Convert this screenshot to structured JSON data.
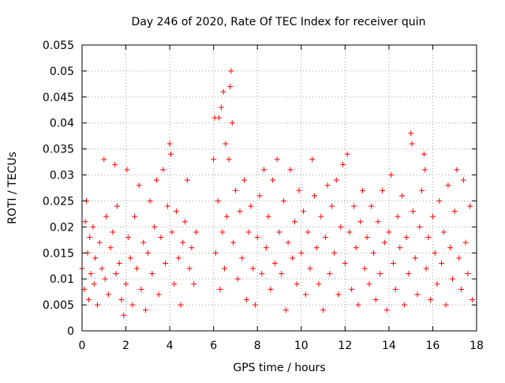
{
  "chart_data": {
    "type": "scatter",
    "title": "Day 246 of 2020, Rate Of TEC Index for receiver quin",
    "xlabel": "GPS time / hours",
    "ylabel": "ROTI / TECUs",
    "xlim": [
      0,
      18
    ],
    "ylim": [
      0,
      0.055
    ],
    "xticks": [
      0,
      2,
      4,
      6,
      8,
      10,
      12,
      14,
      16,
      18
    ],
    "xtick_labels": [
      "0",
      "2",
      "4",
      "6",
      "8",
      "10",
      "12",
      "14",
      "16",
      "18"
    ],
    "yticks": [
      0,
      0.005,
      0.01,
      0.015,
      0.02,
      0.025,
      0.03,
      0.035,
      0.04,
      0.045,
      0.05,
      0.055
    ],
    "ytick_labels": [
      "0",
      "0.005",
      "0.01",
      "0.015",
      "0.02",
      "0.025",
      "0.03",
      "0.035",
      "0.04",
      "0.045",
      "0.05",
      "0.055"
    ],
    "grid": true,
    "marker": "+",
    "color": "#ff0000",
    "series": [
      {
        "name": "ROTI",
        "points": [
          [
            0.0,
            0.012
          ],
          [
            0.1,
            0.008
          ],
          [
            0.15,
            0.021
          ],
          [
            0.2,
            0.025
          ],
          [
            0.25,
            0.015
          ],
          [
            0.3,
            0.006
          ],
          [
            0.35,
            0.018
          ],
          [
            0.4,
            0.011
          ],
          [
            0.5,
            0.02
          ],
          [
            0.55,
            0.009
          ],
          [
            0.6,
            0.014
          ],
          [
            0.7,
            0.005
          ],
          [
            0.8,
            0.017
          ],
          [
            0.9,
            0.012
          ],
          [
            1.0,
            0.033
          ],
          [
            1.05,
            0.01
          ],
          [
            1.1,
            0.022
          ],
          [
            1.2,
            0.007
          ],
          [
            1.3,
            0.016
          ],
          [
            1.4,
            0.019
          ],
          [
            1.5,
            0.032
          ],
          [
            1.55,
            0.011
          ],
          [
            1.6,
            0.024
          ],
          [
            1.7,
            0.013
          ],
          [
            1.8,
            0.006
          ],
          [
            1.9,
            0.003
          ],
          [
            2.0,
            0.009
          ],
          [
            2.05,
            0.031
          ],
          [
            2.1,
            0.018
          ],
          [
            2.2,
            0.014
          ],
          [
            2.3,
            0.005
          ],
          [
            2.4,
            0.022
          ],
          [
            2.5,
            0.012
          ],
          [
            2.6,
            0.028
          ],
          [
            2.7,
            0.008
          ],
          [
            2.8,
            0.017
          ],
          [
            2.9,
            0.004
          ],
          [
            3.0,
            0.015
          ],
          [
            3.1,
            0.025
          ],
          [
            3.2,
            0.011
          ],
          [
            3.3,
            0.02
          ],
          [
            3.4,
            0.029
          ],
          [
            3.5,
            0.007
          ],
          [
            3.6,
            0.018
          ],
          [
            3.7,
            0.031
          ],
          [
            3.8,
            0.013
          ],
          [
            3.9,
            0.024
          ],
          [
            4.0,
            0.036
          ],
          [
            4.05,
            0.034
          ],
          [
            4.1,
            0.019
          ],
          [
            4.2,
            0.009
          ],
          [
            4.3,
            0.023
          ],
          [
            4.4,
            0.014
          ],
          [
            4.5,
            0.005
          ],
          [
            4.6,
            0.017
          ],
          [
            4.7,
            0.021
          ],
          [
            4.8,
            0.029
          ],
          [
            4.9,
            0.012
          ],
          [
            5.0,
            0.016
          ],
          [
            5.1,
            0.009
          ],
          [
            5.2,
            0.019
          ],
          [
            6.0,
            0.033
          ],
          [
            6.05,
            0.041
          ],
          [
            6.1,
            0.015
          ],
          [
            6.2,
            0.025
          ],
          [
            6.25,
            0.041
          ],
          [
            6.3,
            0.008
          ],
          [
            6.35,
            0.043
          ],
          [
            6.4,
            0.019
          ],
          [
            6.45,
            0.046
          ],
          [
            6.5,
            0.012
          ],
          [
            6.55,
            0.036
          ],
          [
            6.6,
            0.022
          ],
          [
            6.7,
            0.033
          ],
          [
            6.75,
            0.047
          ],
          [
            6.8,
            0.05
          ],
          [
            6.85,
            0.04
          ],
          [
            6.9,
            0.017
          ],
          [
            7.0,
            0.027
          ],
          [
            7.1,
            0.01
          ],
          [
            7.2,
            0.023
          ],
          [
            7.3,
            0.014
          ],
          [
            7.4,
            0.029
          ],
          [
            7.5,
            0.006
          ],
          [
            7.6,
            0.019
          ],
          [
            7.7,
            0.024
          ],
          [
            7.8,
            0.012
          ],
          [
            7.9,
            0.005
          ],
          [
            8.0,
            0.018
          ],
          [
            8.1,
            0.026
          ],
          [
            8.2,
            0.011
          ],
          [
            8.3,
            0.031
          ],
          [
            8.4,
            0.016
          ],
          [
            8.5,
            0.022
          ],
          [
            8.6,
            0.008
          ],
          [
            8.7,
            0.029
          ],
          [
            8.8,
            0.013
          ],
          [
            8.9,
            0.033
          ],
          [
            9.0,
            0.019
          ],
          [
            9.1,
            0.011
          ],
          [
            9.2,
            0.025
          ],
          [
            9.3,
            0.004
          ],
          [
            9.4,
            0.017
          ],
          [
            9.5,
            0.031
          ],
          [
            9.6,
            0.014
          ],
          [
            9.7,
            0.021
          ],
          [
            9.8,
            0.009
          ],
          [
            9.9,
            0.027
          ],
          [
            10.0,
            0.015
          ],
          [
            10.1,
            0.023
          ],
          [
            10.2,
            0.007
          ],
          [
            10.3,
            0.019
          ],
          [
            10.4,
            0.012
          ],
          [
            10.5,
            0.033
          ],
          [
            10.6,
            0.026
          ],
          [
            10.7,
            0.016
          ],
          [
            10.8,
            0.009
          ],
          [
            10.9,
            0.022
          ],
          [
            11.0,
            0.004
          ],
          [
            11.1,
            0.018
          ],
          [
            11.2,
            0.028
          ],
          [
            11.3,
            0.011
          ],
          [
            11.4,
            0.024
          ],
          [
            11.5,
            0.015
          ],
          [
            11.6,
            0.029
          ],
          [
            11.7,
            0.007
          ],
          [
            11.8,
            0.02
          ],
          [
            11.9,
            0.032
          ],
          [
            12.0,
            0.013
          ],
          [
            12.1,
            0.034
          ],
          [
            12.2,
            0.019
          ],
          [
            12.3,
            0.008
          ],
          [
            12.4,
            0.024
          ],
          [
            12.5,
            0.016
          ],
          [
            12.6,
            0.005
          ],
          [
            12.7,
            0.021
          ],
          [
            12.8,
            0.027
          ],
          [
            12.9,
            0.012
          ],
          [
            13.0,
            0.018
          ],
          [
            13.1,
            0.009
          ],
          [
            13.2,
            0.024
          ],
          [
            13.3,
            0.015
          ],
          [
            13.4,
            0.006
          ],
          [
            13.5,
            0.021
          ],
          [
            13.6,
            0.011
          ],
          [
            13.7,
            0.027
          ],
          [
            13.8,
            0.017
          ],
          [
            13.9,
            0.004
          ],
          [
            14.0,
            0.019
          ],
          [
            14.1,
            0.03
          ],
          [
            14.2,
            0.013
          ],
          [
            14.3,
            0.008
          ],
          [
            14.4,
            0.022
          ],
          [
            14.5,
            0.016
          ],
          [
            14.6,
            0.026
          ],
          [
            14.7,
            0.005
          ],
          [
            14.8,
            0.018
          ],
          [
            14.9,
            0.011
          ],
          [
            15.0,
            0.038
          ],
          [
            15.05,
            0.036
          ],
          [
            15.1,
            0.023
          ],
          [
            15.2,
            0.014
          ],
          [
            15.3,
            0.007
          ],
          [
            15.4,
            0.02
          ],
          [
            15.5,
            0.027
          ],
          [
            15.6,
            0.034
          ],
          [
            15.65,
            0.031
          ],
          [
            15.7,
            0.012
          ],
          [
            15.8,
            0.018
          ],
          [
            15.9,
            0.006
          ],
          [
            16.0,
            0.022
          ],
          [
            16.1,
            0.015
          ],
          [
            16.2,
            0.009
          ],
          [
            16.3,
            0.025
          ],
          [
            16.4,
            0.013
          ],
          [
            16.5,
            0.019
          ],
          [
            16.6,
            0.005
          ],
          [
            16.7,
            0.028
          ],
          [
            16.8,
            0.016
          ],
          [
            16.9,
            0.01
          ],
          [
            17.0,
            0.023
          ],
          [
            17.1,
            0.031
          ],
          [
            17.2,
            0.014
          ],
          [
            17.3,
            0.008
          ],
          [
            17.4,
            0.029
          ],
          [
            17.5,
            0.017
          ],
          [
            17.6,
            0.011
          ],
          [
            17.7,
            0.024
          ],
          [
            17.8,
            0.006
          ]
        ]
      }
    ]
  }
}
